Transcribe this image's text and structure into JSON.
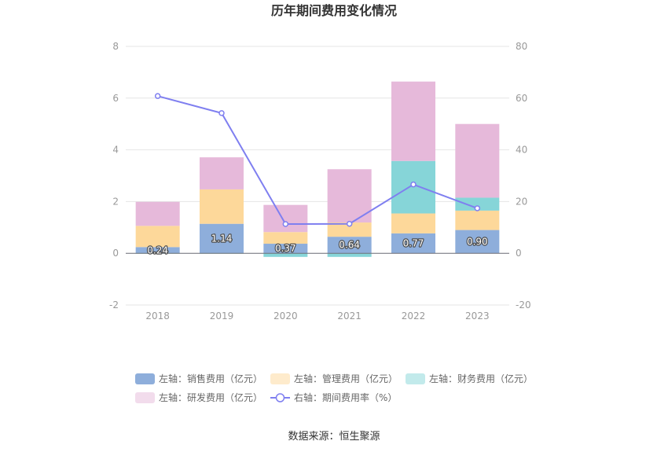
{
  "chart_data": {
    "type": "bar",
    "title": "历年期间费用变化情况",
    "categories": [
      "2018",
      "2019",
      "2020",
      "2021",
      "2022",
      "2023"
    ],
    "stacked": true,
    "left_axis": {
      "ylim": [
        -2,
        8
      ],
      "ticks": [
        "-2",
        "0",
        "2",
        "4",
        "6",
        "8"
      ]
    },
    "right_axis": {
      "ylim": [
        -20,
        80
      ],
      "ticks": [
        "-20",
        "0",
        "20",
        "40",
        "60",
        "80"
      ]
    },
    "grid": true,
    "legend_position": "bottom",
    "series": [
      {
        "name": "左轴：销售费用（亿元）",
        "axis": "left",
        "color": "#8eaedb",
        "values": [
          0.24,
          1.14,
          0.37,
          0.64,
          0.77,
          0.9
        ],
        "data_labels": [
          "0.24",
          "1.14",
          "0.37",
          "0.64",
          "0.77",
          "0.90"
        ]
      },
      {
        "name": "左轴：管理费用（亿元）",
        "axis": "left",
        "color": "#fdd89a",
        "values": [
          0.82,
          1.33,
          0.45,
          0.55,
          0.77,
          0.75
        ]
      },
      {
        "name": "左轴：财务费用（亿元）",
        "axis": "left",
        "color": "#86d5d8",
        "values": [
          -0.01,
          -0.01,
          -0.14,
          -0.14,
          2.03,
          0.5
        ]
      },
      {
        "name": "左轴：研发费用（亿元）",
        "axis": "left",
        "color": "#e6b9da",
        "values": [
          0.93,
          1.24,
          1.05,
          2.06,
          3.07,
          2.85
        ]
      },
      {
        "name": "右轴：期间费用率（%）",
        "axis": "right",
        "type": "line",
        "color": "#7f7ff0",
        "values": [
          60.8,
          54.2,
          11.3,
          11.4,
          26.6,
          17.4
        ]
      }
    ],
    "source": "数据来源：恒生聚源"
  }
}
